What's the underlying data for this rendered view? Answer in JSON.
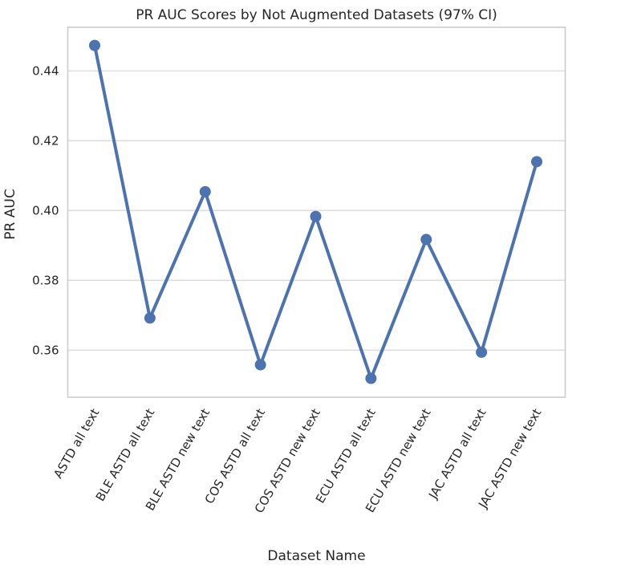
{
  "chart_data": {
    "type": "line",
    "title": "PR AUC Scores by Not Augmented Datasets (97% CI)",
    "xlabel": "Dataset Name",
    "ylabel": "PR AUC",
    "categories": [
      "ASTD  all text",
      "BLE ASTD  all text",
      "BLE ASTD  new text",
      "COS ASTD  all text",
      "COS ASTD  new text",
      "ECU ASTD  all text",
      "ECU ASTD  new text",
      "JAC ASTD  all text",
      "JAC ASTD  new text"
    ],
    "series": [
      {
        "values": [
          0.4473,
          0.3692,
          0.4054,
          0.3558,
          0.3983,
          0.3519,
          0.3917,
          0.3594,
          0.414
        ],
        "color": "#4c72b0"
      }
    ],
    "yticks": [
      0.36,
      0.38,
      0.4,
      0.42,
      0.44
    ],
    "ytick_labels": [
      "0.36",
      "0.38",
      "0.40",
      "0.42",
      "0.44"
    ],
    "ylim": [
      0.3465,
      0.4525
    ],
    "grid": true,
    "grid_axis": "y",
    "legend": false,
    "xtick_rotation": 60
  }
}
